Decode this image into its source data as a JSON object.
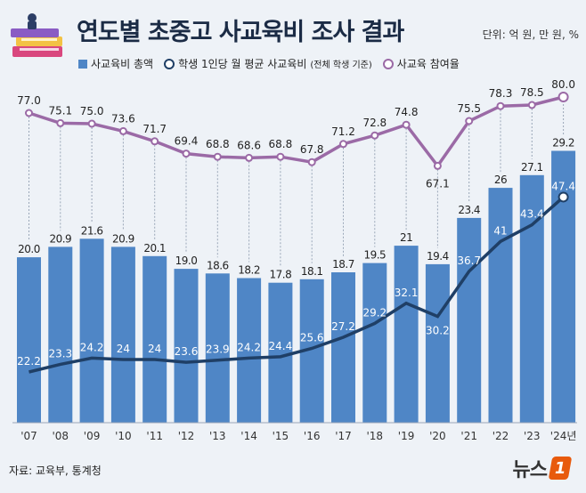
{
  "header": {
    "title": "연도별 초중고 사교육비 조사 결과",
    "unit": "단위: 억 원, 만 원, %"
  },
  "legend": {
    "bar": "사교육비 총액",
    "line1": "학생 1인당 월 평균 사교육비",
    "line1_note": "(전체 학생 기준)",
    "line2": "사교육 참여율"
  },
  "footer": {
    "source": "자료: 교육부, 통계청",
    "logo_text": "뉴스",
    "logo_num": "1"
  },
  "colors": {
    "bar": "#4f86c6",
    "line1": "#1f3f66",
    "line2": "#9b6aa6",
    "background": "#eef2f7"
  },
  "chart_data": {
    "type": "bar",
    "categories": [
      "'07",
      "'08",
      "'09",
      "'10",
      "'11",
      "'12",
      "'13",
      "'14",
      "'15",
      "'16",
      "'17",
      "'18",
      "'19",
      "'20",
      "'21",
      "'22",
      "'23",
      "'24년"
    ],
    "series": [
      {
        "name": "사교육비 총액",
        "type": "bar",
        "values": [
          20.0,
          20.9,
          21.6,
          20.9,
          20.1,
          19.0,
          18.6,
          18.2,
          17.8,
          18.1,
          18.7,
          19.5,
          21,
          19.4,
          23.4,
          26,
          27.1,
          29.2
        ],
        "labels": [
          "20.0",
          "20.9",
          "21.6",
          "20.9",
          "20.1",
          "19.0",
          "18.6",
          "18.2",
          "17.8",
          "18.1",
          "18.7",
          "19.5",
          "21",
          "19.4",
          "23.4",
          "26",
          "27.1",
          "29.2"
        ]
      },
      {
        "name": "학생 1인당 월 평균 사교육비",
        "type": "line",
        "values": [
          22.2,
          23.3,
          24.2,
          24,
          24,
          23.6,
          23.9,
          24.2,
          24.4,
          25.6,
          27.2,
          29.2,
          32.1,
          30.2,
          36.7,
          41,
          43.4,
          47.4
        ],
        "labels": [
          "22.2",
          "23.3",
          "24.2",
          "24",
          "24",
          "23.6",
          "23.9",
          "24.2",
          "24.4",
          "25.6",
          "27.2",
          "29.2",
          "32.1",
          "30.2",
          "36.7",
          "41",
          "43.4",
          "47.4"
        ]
      },
      {
        "name": "사교육 참여율",
        "type": "line",
        "values": [
          77.0,
          75.1,
          75.0,
          73.6,
          71.7,
          69.4,
          68.8,
          68.6,
          68.8,
          67.8,
          71.2,
          72.8,
          74.8,
          67.1,
          75.5,
          78.3,
          78.5,
          80.0
        ],
        "labels": [
          "77.0",
          "75.1",
          "75.0",
          "73.6",
          "71.7",
          "69.4",
          "68.8",
          "68.6",
          "68.8",
          "67.8",
          "71.2",
          "72.8",
          "74.8",
          "67.1",
          "75.5",
          "78.3",
          "78.5",
          "80.0"
        ]
      }
    ]
  }
}
